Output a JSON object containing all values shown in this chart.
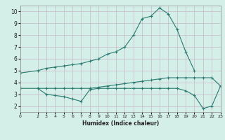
{
  "xlabel": "Humidex (Indice chaleur)",
  "ylabel": "",
  "bg_color": "#d4eee8",
  "grid_color": "#c8b8c8",
  "line_color": "#2a7a70",
  "xlim": [
    0,
    23
  ],
  "ylim": [
    1.5,
    10.5
  ],
  "xticks": [
    0,
    2,
    3,
    4,
    5,
    6,
    7,
    8,
    9,
    10,
    11,
    12,
    13,
    14,
    15,
    16,
    17,
    18,
    19,
    20,
    21,
    22,
    23
  ],
  "yticks": [
    2,
    3,
    4,
    5,
    6,
    7,
    8,
    9,
    10
  ],
  "line1": {
    "x": [
      0,
      2,
      3,
      4,
      5,
      6,
      7,
      8,
      9,
      10,
      11,
      12,
      13,
      14,
      15,
      16,
      17,
      18,
      19,
      20
    ],
    "y": [
      4.8,
      5.0,
      5.2,
      5.3,
      5.4,
      5.5,
      5.6,
      5.8,
      6.0,
      6.4,
      6.6,
      7.0,
      8.0,
      9.4,
      9.6,
      10.3,
      9.8,
      8.5,
      6.6,
      5.0
    ]
  },
  "line2": {
    "x": [
      0,
      2,
      3,
      4,
      5,
      6,
      7,
      8,
      9,
      10,
      11,
      12,
      13,
      14,
      15,
      16,
      17,
      18,
      19,
      20,
      21,
      22,
      23
    ],
    "y": [
      3.5,
      3.5,
      3.5,
      3.5,
      3.5,
      3.5,
      3.5,
      3.5,
      3.6,
      3.7,
      3.8,
      3.9,
      4.0,
      4.1,
      4.2,
      4.3,
      4.4,
      4.4,
      4.4,
      4.4,
      4.4,
      4.4,
      3.7
    ]
  },
  "line3": {
    "x": [
      2,
      3,
      4,
      5,
      6,
      7,
      8,
      9,
      10,
      11,
      12,
      13,
      14,
      15,
      16,
      17,
      18,
      19,
      20,
      21,
      22,
      23
    ],
    "y": [
      3.5,
      3.0,
      2.9,
      2.8,
      2.6,
      2.4,
      3.4,
      3.5,
      3.5,
      3.5,
      3.5,
      3.5,
      3.5,
      3.5,
      3.5,
      3.5,
      3.5,
      3.3,
      2.9,
      1.8,
      2.0,
      3.7
    ]
  }
}
